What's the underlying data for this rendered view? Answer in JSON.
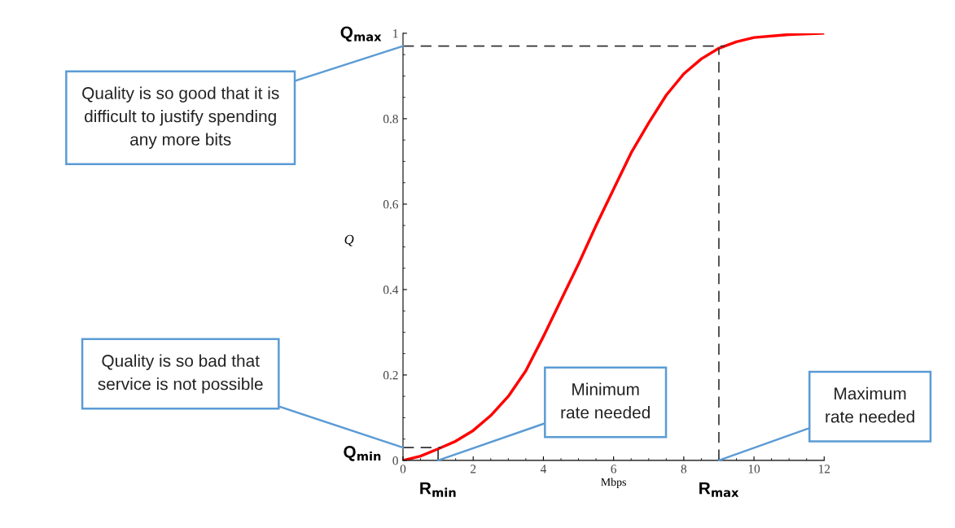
{
  "chart_data": {
    "type": "line",
    "xlabel": "Mbps",
    "ylabel": "Q",
    "x": [
      0,
      0.5,
      1,
      1.5,
      2,
      2.5,
      3,
      3.5,
      4,
      4.5,
      5,
      5.5,
      6,
      6.5,
      7,
      7.5,
      8,
      8.5,
      9,
      9.5,
      10,
      11,
      12
    ],
    "series": [
      {
        "color": "#ff0000",
        "values": [
          0,
          0.01,
          0.027,
          0.045,
          0.07,
          0.105,
          0.15,
          0.21,
          0.29,
          0.375,
          0.46,
          0.55,
          0.635,
          0.72,
          0.79,
          0.855,
          0.905,
          0.94,
          0.965,
          0.98,
          0.99,
          0.997,
          1.0
        ]
      }
    ],
    "xlim": [
      0,
      12
    ],
    "ylim": [
      0,
      1
    ],
    "xticks": [
      0,
      2,
      4,
      6,
      8,
      10,
      12
    ],
    "yticks": [
      0,
      0.2,
      0.4,
      0.6,
      0.8,
      1
    ],
    "grid": false,
    "legend": false,
    "marker": "none",
    "line_style": "solid",
    "ref_lines": [
      {
        "axis": "y",
        "value": 0.97,
        "label": "Q$_{max}$",
        "color": "#333333",
        "line_style": "dashed"
      },
      {
        "axis": "y",
        "value": 0.03,
        "label": "Q$_{min}$",
        "color": "#333333",
        "line_style": "dashed"
      },
      {
        "axis": "x",
        "value": 1,
        "label": "R$_{min}$",
        "color": "#333333",
        "line_style": "dashed"
      },
      {
        "axis": "x",
        "value": 9,
        "label": "R$_{max}$",
        "color": "#333333",
        "line_style": "dashed"
      }
    ],
    "annotations": [
      {
        "text": "Quality is so good that it is\ndifficult to justify spending\nany more bits",
        "x": 0,
        "y": 0.97
      },
      {
        "text": "Quality is so bad that\nservice is not possible",
        "x": 0,
        "y": 0.03
      },
      {
        "text": "Minimum\nrate needed",
        "x": 1,
        "y": 0
      },
      {
        "text": "Maximum\nrate needed",
        "x": 9,
        "y": 0
      }
    ]
  }
}
